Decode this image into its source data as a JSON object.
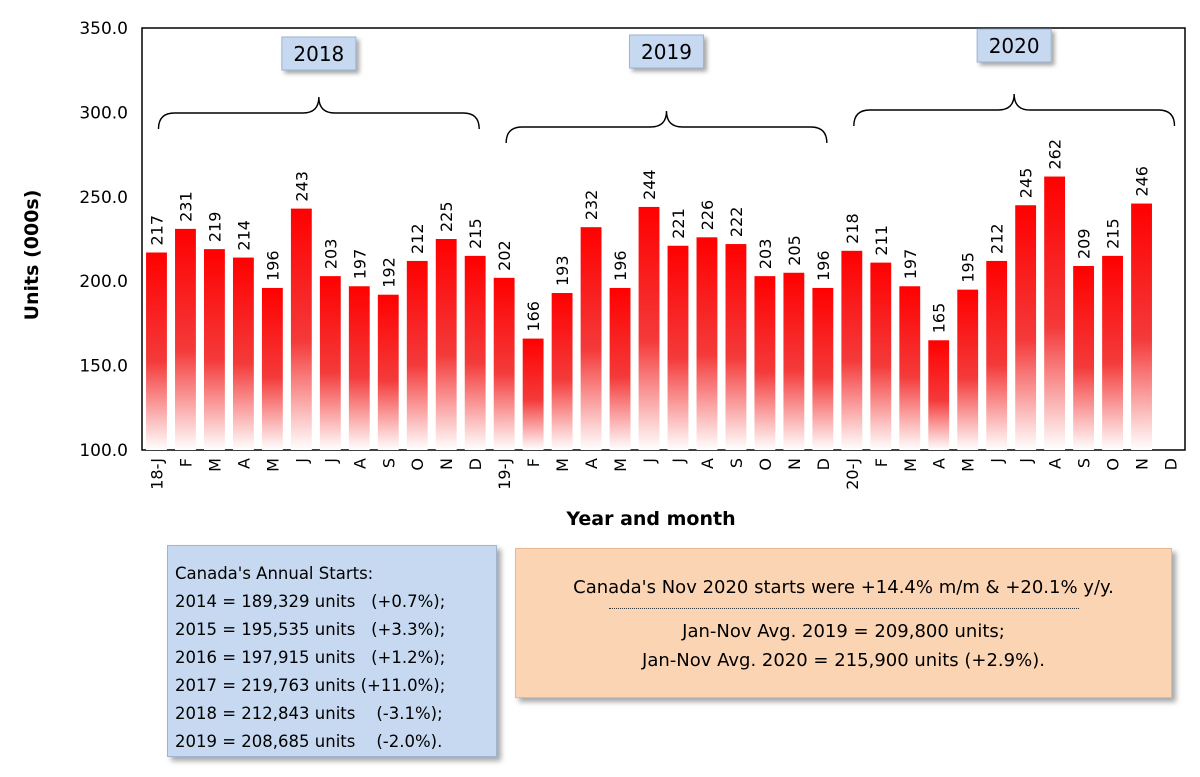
{
  "chart_data": {
    "type": "bar",
    "ylabel": "Units (000s)",
    "xlabel": "Year and month",
    "ylim": [
      100,
      350
    ],
    "yticks": [
      "100.0",
      "150.0",
      "200.0",
      "250.0",
      "300.0",
      "350.0"
    ],
    "categories": [
      "18-J",
      "F",
      "M",
      "A",
      "M",
      "J",
      "J",
      "A",
      "S",
      "O",
      "N",
      "D",
      "19-J",
      "F",
      "M",
      "A",
      "M",
      "J",
      "J",
      "A",
      "S",
      "O",
      "N",
      "D",
      "20-J",
      "F",
      "M",
      "A",
      "M",
      "J",
      "J",
      "A",
      "S",
      "O",
      "N",
      "D"
    ],
    "values": [
      217,
      231,
      219,
      214,
      196,
      243,
      203,
      197,
      192,
      212,
      225,
      215,
      202,
      166,
      193,
      232,
      196,
      244,
      221,
      226,
      222,
      203,
      205,
      196,
      218,
      211,
      197,
      165,
      195,
      212,
      245,
      262,
      209,
      215,
      246,
      null
    ],
    "data_labels": [
      "217",
      "231",
      "219",
      "214",
      "196",
      "243",
      "203",
      "197",
      "192",
      "212",
      "225",
      "215",
      "202",
      "166",
      "193",
      "232",
      "196",
      "244",
      "221",
      "226",
      "222",
      "203",
      "205",
      "196",
      "218",
      "211",
      "197",
      "165",
      "195",
      "212",
      "245",
      "262",
      "209",
      "215",
      "246",
      ""
    ],
    "year_groups": [
      {
        "label": "2018",
        "from": 0,
        "to": 11
      },
      {
        "label": "2019",
        "from": 12,
        "to": 23
      },
      {
        "label": "2020",
        "from": 24,
        "to": 35
      }
    ],
    "bar_color_top": "#ff0000",
    "bar_color_bottom": "#ffffff",
    "year_label_bg": "#c6d9f0",
    "grid": false
  },
  "annual_starts": {
    "title": "Canada's Annual Starts:",
    "lines": [
      "2014 = 189,329 units   (+0.7%);",
      "2015 = 195,535 units   (+3.3%);",
      "2016 = 197,915 units   (+1.2%);",
      "2017 = 219,763 units (+11.0%);",
      "2018 = 212,843 units    (-3.1%);",
      "2019 = 208,685 units    (-2.0%)."
    ]
  },
  "summary": {
    "headline": "Canada's Nov 2020 starts were +14.4% m/m & +20.1% y/y.",
    "avg_2019": "Jan-Nov Avg. 2019 = 209,800 units;",
    "avg_2020": "Jan-Nov Avg. 2020 = 215,900 units (+2.9%)."
  }
}
